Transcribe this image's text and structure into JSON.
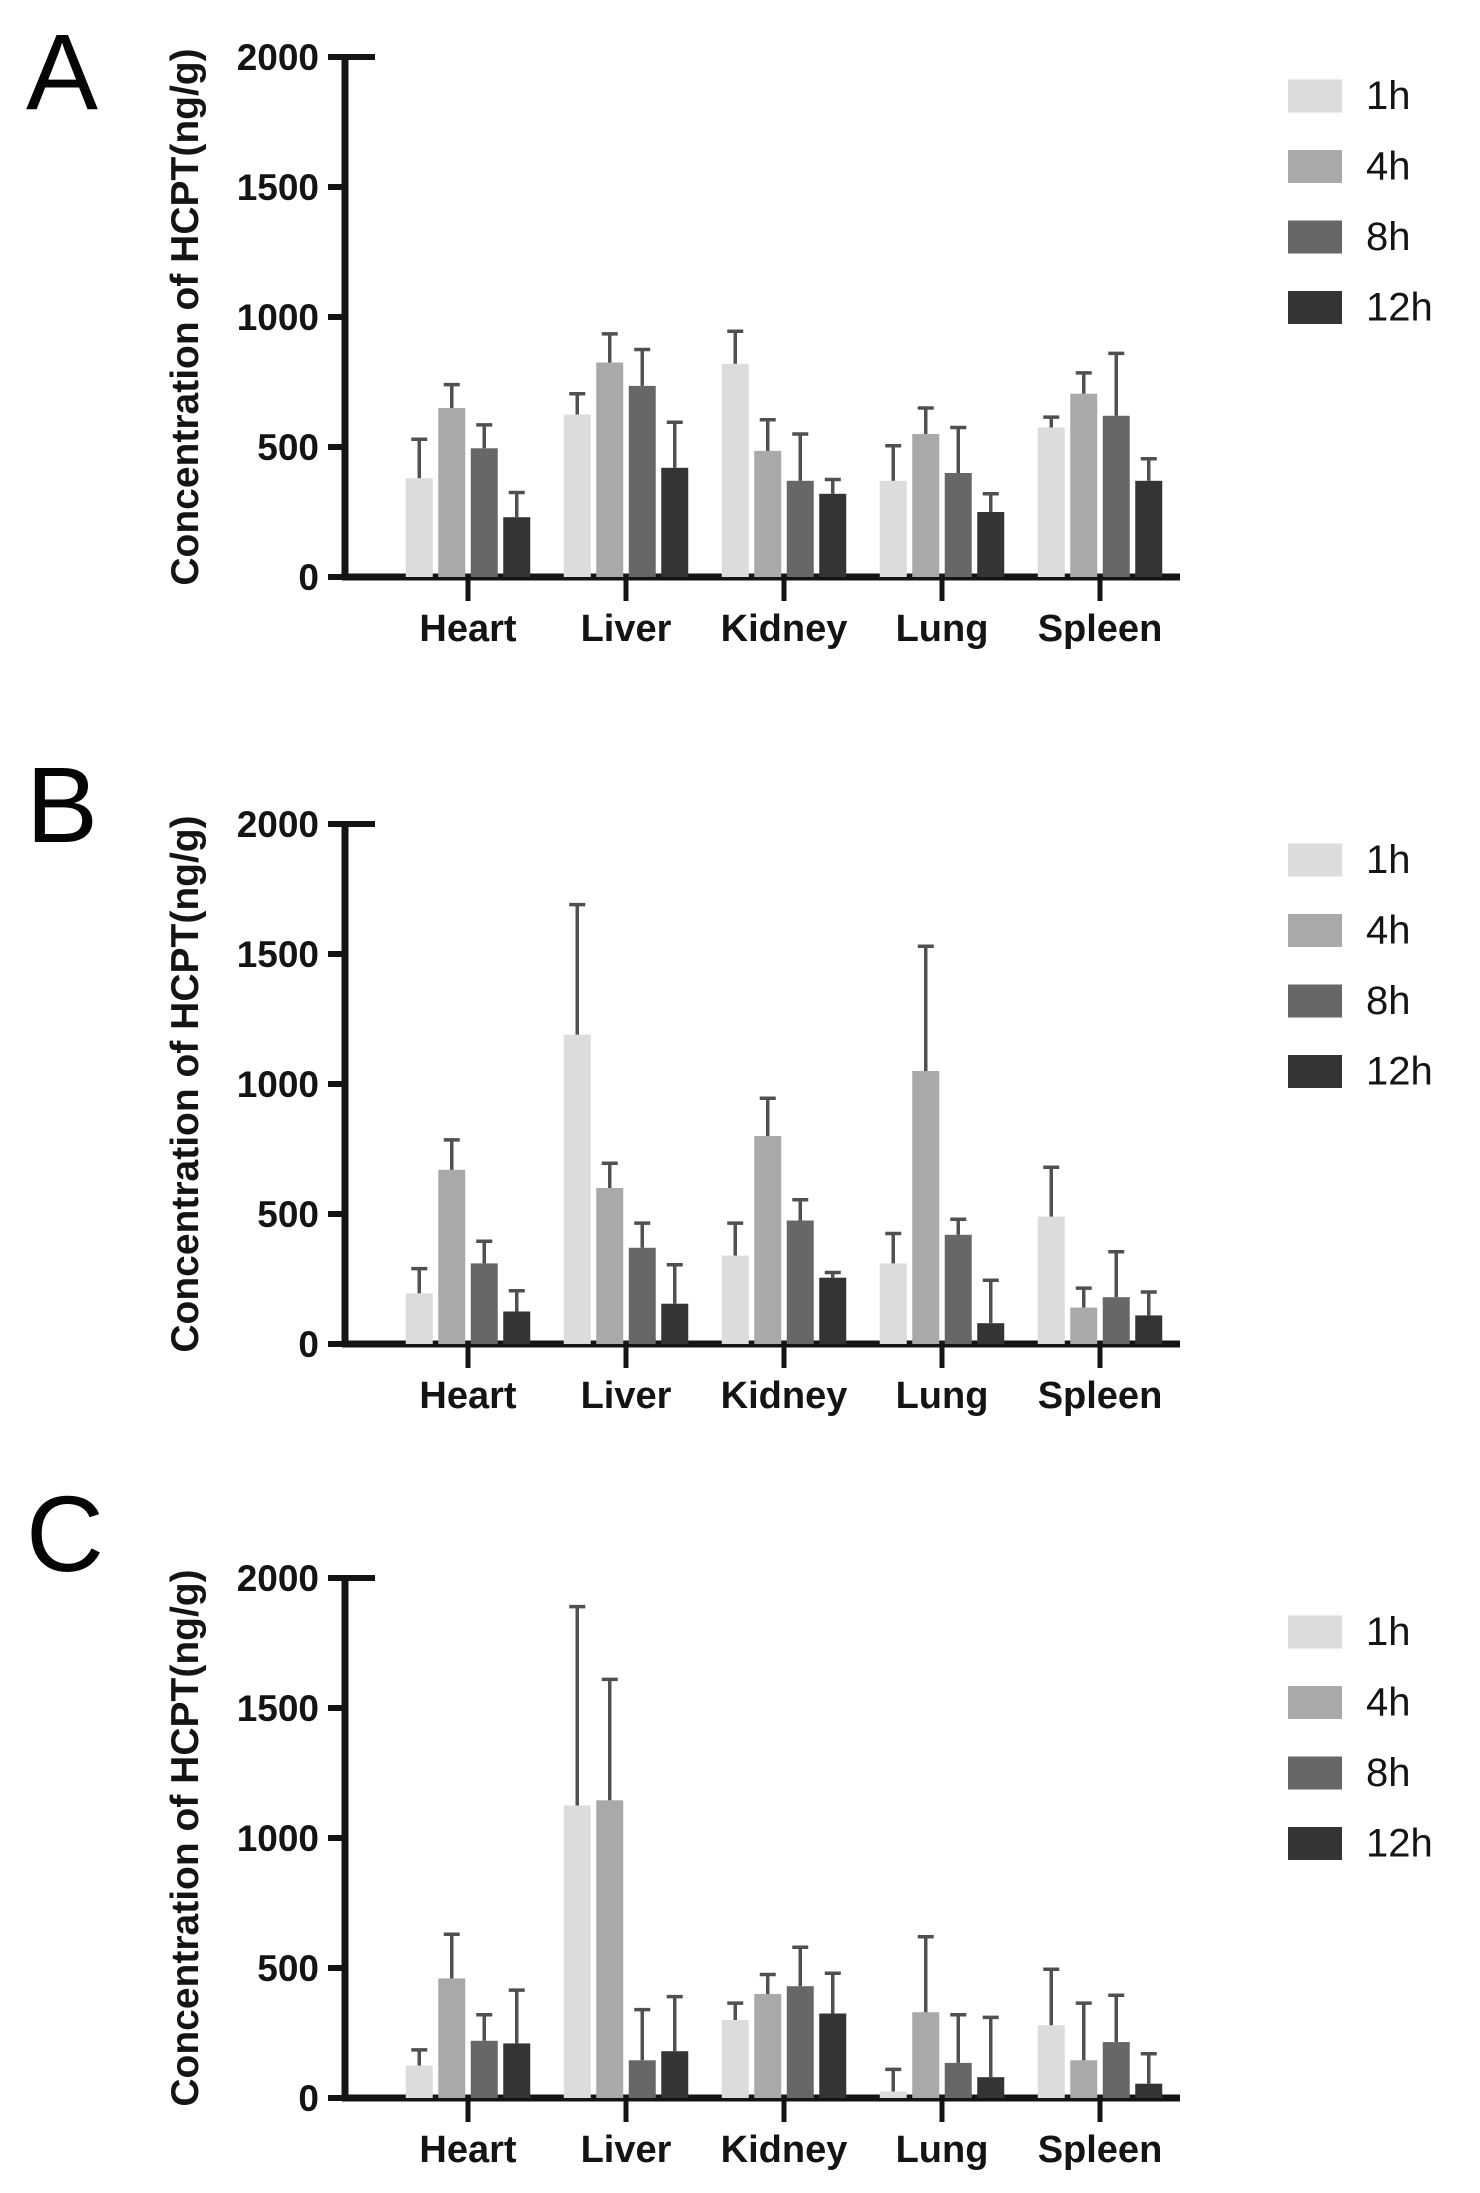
{
  "figure": {
    "panels": [
      "A",
      "B",
      "C"
    ],
    "y_axis_label": "Concentration of HCPT(ng/g)",
    "legend_labels": [
      "1h",
      "4h",
      "8h",
      "12h"
    ],
    "series_colors": {
      "1h": "#dcdcdc",
      "4h": "#a9a9ac",
      "8h": "#656768",
      "12h": "#323435"
    },
    "axis_color": "#141414",
    "error_bar_color": "#505050"
  },
  "chart_data": [
    {
      "type": "bar",
      "panel": "A",
      "ylabel": "Concentration of HCPT(ng/g)",
      "categories": [
        "Heart",
        "Liver",
        "Kidney",
        "Lung",
        "Spleen"
      ],
      "ylim": [
        0,
        2000
      ],
      "yticks": [
        0,
        500,
        1000,
        1500,
        2000
      ],
      "grid": false,
      "legend_position": "right",
      "error_bars": "sd-up",
      "series": [
        {
          "name": "1h",
          "color": "#dcdcdc",
          "values": [
            380,
            625,
            820,
            370,
            575
          ],
          "errors": [
            150,
            80,
            125,
            135,
            40
          ]
        },
        {
          "name": "4h",
          "color": "#a9a9ac",
          "values": [
            650,
            825,
            485,
            550,
            705
          ],
          "errors": [
            90,
            110,
            120,
            100,
            80
          ]
        },
        {
          "name": "8h",
          "color": "#656768",
          "values": [
            495,
            735,
            370,
            400,
            620
          ],
          "errors": [
            90,
            140,
            180,
            175,
            240
          ]
        },
        {
          "name": "12h",
          "color": "#323435",
          "values": [
            230,
            420,
            320,
            250,
            370
          ],
          "errors": [
            95,
            175,
            55,
            70,
            85
          ]
        }
      ]
    },
    {
      "type": "bar",
      "panel": "B",
      "ylabel": "Concentration of HCPT(ng/g)",
      "categories": [
        "Heart",
        "Liver",
        "Kidney",
        "Lung",
        "Spleen"
      ],
      "ylim": [
        0,
        2000
      ],
      "yticks": [
        0,
        500,
        1000,
        1500,
        2000
      ],
      "grid": false,
      "legend_position": "right",
      "error_bars": "sd-up",
      "series": [
        {
          "name": "1h",
          "color": "#dcdcdc",
          "values": [
            195,
            1190,
            340,
            310,
            490
          ],
          "errors": [
            95,
            500,
            125,
            115,
            190
          ]
        },
        {
          "name": "4h",
          "color": "#a9a9ac",
          "values": [
            670,
            600,
            800,
            1050,
            140
          ],
          "errors": [
            115,
            95,
            145,
            480,
            75
          ]
        },
        {
          "name": "8h",
          "color": "#656768",
          "values": [
            310,
            370,
            475,
            420,
            180
          ],
          "errors": [
            85,
            95,
            80,
            60,
            175
          ]
        },
        {
          "name": "12h",
          "color": "#323435",
          "values": [
            125,
            155,
            255,
            80,
            110
          ],
          "errors": [
            80,
            150,
            20,
            165,
            90
          ]
        }
      ]
    },
    {
      "type": "bar",
      "panel": "C",
      "ylabel": "Concentration of HCPT(ng/g)",
      "categories": [
        "Heart",
        "Liver",
        "Kidney",
        "Lung",
        "Spleen"
      ],
      "ylim": [
        0,
        2000
      ],
      "yticks": [
        0,
        500,
        1000,
        1500,
        2000
      ],
      "grid": false,
      "legend_position": "right",
      "error_bars": "sd-up",
      "series": [
        {
          "name": "1h",
          "color": "#dcdcdc",
          "values": [
            125,
            1125,
            300,
            25,
            280
          ],
          "errors": [
            60,
            765,
            65,
            85,
            215
          ]
        },
        {
          "name": "4h",
          "color": "#a9a9ac",
          "values": [
            460,
            1145,
            400,
            330,
            145
          ],
          "errors": [
            170,
            465,
            75,
            290,
            220
          ]
        },
        {
          "name": "8h",
          "color": "#656768",
          "values": [
            220,
            145,
            430,
            135,
            215
          ],
          "errors": [
            100,
            195,
            150,
            185,
            180
          ]
        },
        {
          "name": "12h",
          "color": "#323435",
          "values": [
            210,
            180,
            325,
            80,
            55
          ],
          "errors": [
            205,
            210,
            155,
            230,
            115
          ]
        }
      ]
    }
  ]
}
